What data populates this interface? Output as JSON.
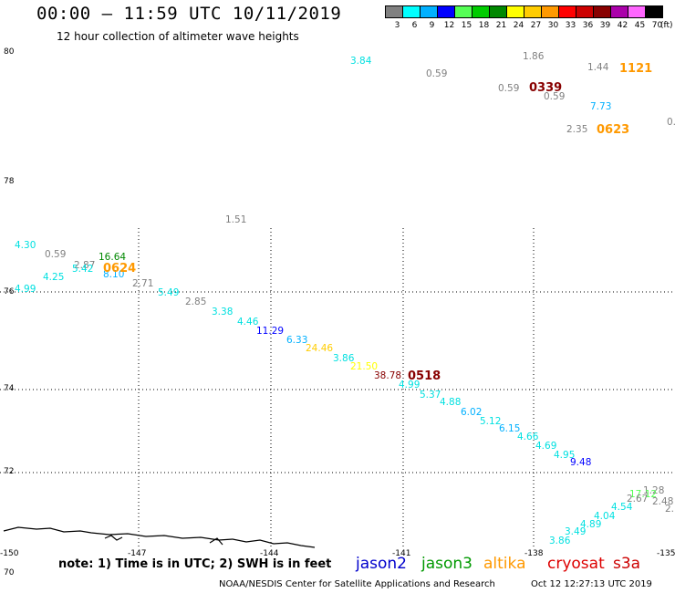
{
  "header": {
    "title": "00:00 — 11:59 UTC 10/11/2019",
    "subtitle": "12 hour collection of altimeter wave heights"
  },
  "color_scale": {
    "swatches": [
      "#808080",
      "#00ffff",
      "#00b0ff",
      "#0000ff",
      "#55ff55",
      "#00cc00",
      "#008800",
      "#ffff00",
      "#ffcc00",
      "#ff9900",
      "#ff0000",
      "#cc0000",
      "#880000",
      "#aa00aa",
      "#ff66ff",
      "#000000"
    ],
    "labels": [
      "3",
      "6",
      "9",
      "12",
      "15",
      "18",
      "21",
      "24",
      "27",
      "30",
      "33",
      "36",
      "39",
      "42",
      "45",
      "70"
    ],
    "unit": "(ft)"
  },
  "map_axes": {
    "lat_labels": [
      "80",
      "78",
      "76",
      "74",
      "72",
      "70"
    ],
    "lon_labels": [
      "-150",
      "-147",
      "-144",
      "-141",
      "-138",
      "-135"
    ]
  },
  "swh_points": [
    {
      "text": "3.84",
      "color": "#00e0e0"
    },
    {
      "text": "0.59",
      "color": "#808080"
    },
    {
      "text": "1.86",
      "color": "#808080"
    },
    {
      "text": "1.44",
      "color": "#808080"
    },
    {
      "text": "0.59",
      "color": "#808080"
    },
    {
      "text": "0.59",
      "color": "#808080"
    },
    {
      "text": "7.73",
      "color": "#00b0ff"
    },
    {
      "text": "2.35",
      "color": "#808080"
    },
    {
      "text": "0.",
      "color": "#808080"
    },
    {
      "text": "1.51",
      "color": "#808080"
    },
    {
      "text": "4.30",
      "color": "#00e0e0"
    },
    {
      "text": "0.59",
      "color": "#808080"
    },
    {
      "text": "16.64",
      "color": "#008800"
    },
    {
      "text": "2.87",
      "color": "#808080"
    },
    {
      "text": "5.42",
      "color": "#00e0e0"
    },
    {
      "text": "4.25",
      "color": "#00e0e0"
    },
    {
      "text": "8.10",
      "color": "#00b0ff"
    },
    {
      "text": "2.71",
      "color": "#808080"
    },
    {
      "text": "4.99",
      "color": "#00e0e0"
    },
    {
      "text": "5.49",
      "color": "#00e0e0"
    },
    {
      "text": "2.85",
      "color": "#808080"
    },
    {
      "text": "3.38",
      "color": "#00e0e0"
    },
    {
      "text": "4.46",
      "color": "#00e0e0"
    },
    {
      "text": "11.29",
      "color": "#0000ff"
    },
    {
      "text": "6.33",
      "color": "#00b0ff"
    },
    {
      "text": "24.46",
      "color": "#ffcc00"
    },
    {
      "text": "3.86",
      "color": "#00e0e0"
    },
    {
      "text": "21.50",
      "color": "#ffff00"
    },
    {
      "text": "38.78",
      "color": "#880000"
    },
    {
      "text": "4.99",
      "color": "#00e0e0"
    },
    {
      "text": "5.37",
      "color": "#00e0e0"
    },
    {
      "text": "4.88",
      "color": "#00e0e0"
    },
    {
      "text": "6.02",
      "color": "#00b0ff"
    },
    {
      "text": "5.12",
      "color": "#00e0e0"
    },
    {
      "text": "6.15",
      "color": "#00b0ff"
    },
    {
      "text": "4.66",
      "color": "#00e0e0"
    },
    {
      "text": "4.69",
      "color": "#00e0e0"
    },
    {
      "text": "4.95",
      "color": "#00e0e0"
    },
    {
      "text": "9.48",
      "color": "#0000ff"
    },
    {
      "text": "1.28",
      "color": "#808080"
    },
    {
      "text": "17.12",
      "color": "#55ff55"
    },
    {
      "text": "2.67",
      "color": "#808080"
    },
    {
      "text": "2.48",
      "color": "#808080"
    },
    {
      "text": "4.54",
      "color": "#00e0e0"
    },
    {
      "text": "4.04",
      "color": "#00e0e0"
    },
    {
      "text": "4.89",
      "color": "#00e0e0"
    },
    {
      "text": "3.49",
      "color": "#00e0e0"
    },
    {
      "text": "3.86",
      "color": "#00e0e0"
    },
    {
      "text": "2.",
      "color": "#808080"
    }
  ],
  "pass_times": [
    {
      "text": "1121",
      "color": "#ff9900"
    },
    {
      "text": "0339",
      "color": "#880000"
    },
    {
      "text": "0623",
      "color": "#ff9900"
    },
    {
      "text": "0624",
      "color": "#ff9900"
    },
    {
      "text": "0518",
      "color": "#880000"
    }
  ],
  "legend": {
    "note": "note: 1) Time is in UTC; 2) SWH is in feet",
    "satellites": [
      {
        "name": "jason2",
        "color": "#0000cc"
      },
      {
        "name": "jason3",
        "color": "#009900"
      },
      {
        "name": "altika",
        "color": "#ff9900"
      },
      {
        "name": "cryosat",
        "color": "#dd0000"
      },
      {
        "name": "s3a",
        "color": "#cc0000"
      }
    ]
  },
  "footer": {
    "credit": "NOAA/NESDIS Center for Satellite Applications and Research",
    "timestamp": "Oct 12 12:27:13 UTC 2019"
  }
}
